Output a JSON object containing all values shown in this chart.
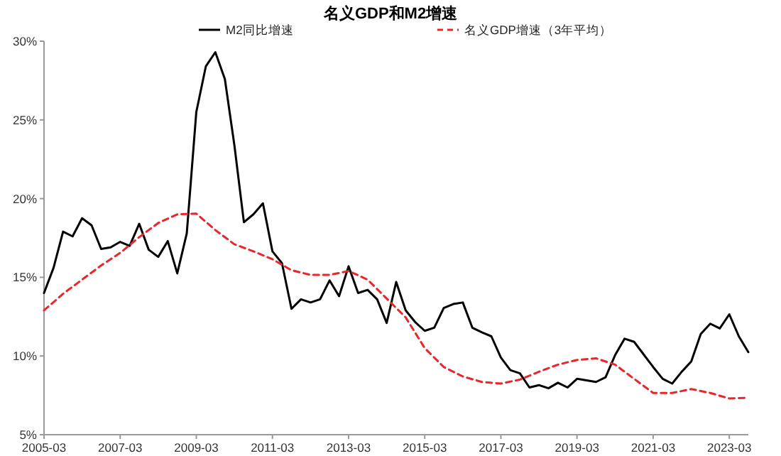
{
  "chart_data": {
    "type": "line",
    "title": "名义GDP和M2增速",
    "legend": "top",
    "xlim": [
      "2005-03",
      "2023-09"
    ],
    "ylim": [
      5,
      30
    ],
    "xticks": [
      "2005-03",
      "2007-03",
      "2009-03",
      "2011-03",
      "2013-03",
      "2015-03",
      "2017-03",
      "2019-03",
      "2021-03",
      "2023-03"
    ],
    "yticks": [
      {
        "value": 5,
        "label": "5%"
      },
      {
        "value": 10,
        "label": "10%"
      },
      {
        "value": 15,
        "label": "15%"
      },
      {
        "value": 20,
        "label": "20%"
      },
      {
        "value": 25,
        "label": "25%"
      },
      {
        "value": 30,
        "label": "30%"
      }
    ],
    "series": [
      {
        "name": "M2同比增速",
        "color": "#000000",
        "line_style": "solid",
        "x": [
          "2005-03",
          "2005-06",
          "2005-09",
          "2005-12",
          "2006-03",
          "2006-06",
          "2006-09",
          "2006-12",
          "2007-03",
          "2007-06",
          "2007-09",
          "2007-12",
          "2008-03",
          "2008-06",
          "2008-09",
          "2008-12",
          "2009-03",
          "2009-06",
          "2009-09",
          "2009-12",
          "2010-03",
          "2010-06",
          "2010-09",
          "2010-12",
          "2011-03",
          "2011-06",
          "2011-09",
          "2011-12",
          "2012-03",
          "2012-06",
          "2012-09",
          "2012-12",
          "2013-03",
          "2013-06",
          "2013-09",
          "2013-12",
          "2014-03",
          "2014-06",
          "2014-09",
          "2014-12",
          "2015-03",
          "2015-06",
          "2015-09",
          "2015-12",
          "2016-03",
          "2016-06",
          "2016-09",
          "2016-12",
          "2017-03",
          "2017-06",
          "2017-09",
          "2017-12",
          "2018-03",
          "2018-06",
          "2018-09",
          "2018-12",
          "2019-03",
          "2019-06",
          "2019-09",
          "2019-12",
          "2020-03",
          "2020-06",
          "2020-09",
          "2020-12",
          "2021-03",
          "2021-06",
          "2021-09",
          "2021-12",
          "2022-03",
          "2022-06",
          "2022-09",
          "2022-12",
          "2023-03",
          "2023-06",
          "2023-09"
        ],
        "values": [
          14.0,
          15.6,
          17.9,
          17.6,
          18.75,
          18.3,
          16.8,
          16.9,
          17.25,
          17.0,
          18.4,
          16.75,
          16.3,
          17.3,
          15.25,
          17.8,
          25.5,
          28.4,
          29.3,
          27.6,
          23.4,
          18.5,
          19.0,
          19.7,
          16.65,
          15.9,
          13.0,
          13.6,
          13.4,
          13.6,
          14.8,
          13.8,
          15.7,
          14.0,
          14.2,
          13.6,
          12.1,
          14.7,
          12.9,
          12.15,
          11.6,
          11.8,
          13.05,
          13.3,
          13.4,
          11.8,
          11.5,
          11.25,
          9.9,
          9.1,
          8.9,
          8.0,
          8.15,
          7.95,
          8.3,
          8.0,
          8.55,
          8.45,
          8.35,
          8.65,
          10.05,
          11.1,
          10.9,
          10.1,
          9.3,
          8.55,
          8.25,
          9.0,
          9.65,
          11.4,
          12.05,
          11.75,
          12.65,
          11.25,
          10.25
        ]
      },
      {
        "name": "名义GDP增速（3年平均）",
        "color": "#e8262b",
        "line_style": "dashed",
        "x": [
          "2005-03",
          "2005-09",
          "2006-03",
          "2006-09",
          "2007-03",
          "2007-09",
          "2008-03",
          "2008-09",
          "2009-03",
          "2009-09",
          "2010-03",
          "2010-09",
          "2011-03",
          "2011-09",
          "2012-03",
          "2012-09",
          "2013-03",
          "2013-09",
          "2014-03",
          "2014-09",
          "2015-03",
          "2015-09",
          "2016-03",
          "2016-09",
          "2017-03",
          "2017-09",
          "2018-03",
          "2018-09",
          "2019-03",
          "2019-09",
          "2020-03",
          "2020-09",
          "2021-03",
          "2021-09",
          "2022-03",
          "2022-09",
          "2023-03",
          "2023-09"
        ],
        "values": [
          12.9,
          13.95,
          14.85,
          15.75,
          16.55,
          17.55,
          18.45,
          19.0,
          19.05,
          18.0,
          17.1,
          16.65,
          16.15,
          15.45,
          15.15,
          15.15,
          15.4,
          14.85,
          13.65,
          12.45,
          10.5,
          9.3,
          8.7,
          8.35,
          8.25,
          8.5,
          9.0,
          9.45,
          9.75,
          9.85,
          9.45,
          8.55,
          7.65,
          7.65,
          7.9,
          7.65,
          7.3,
          7.35
        ]
      }
    ]
  }
}
